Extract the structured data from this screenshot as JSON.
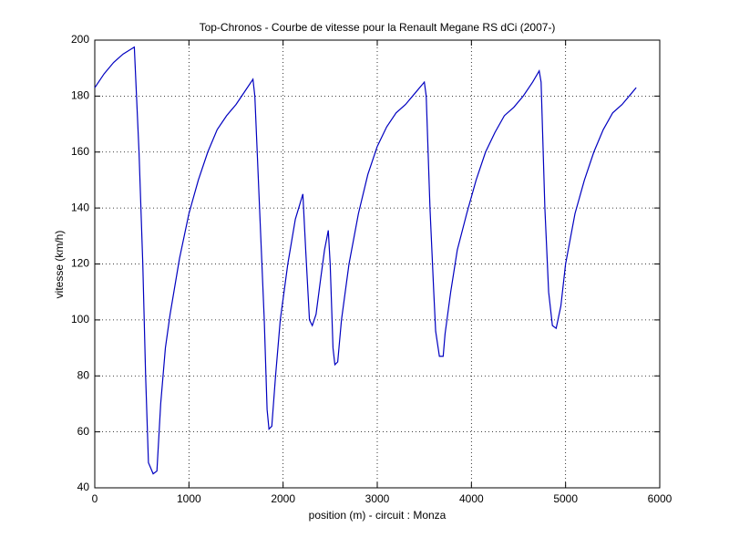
{
  "chart_data": {
    "type": "line",
    "title": "Top-Chronos - Courbe de vitesse pour la Renault Megane RS dCi (2007-)",
    "x_label": "position (m) - circuit : Monza",
    "y_label": "vitesse (km/h)",
    "x": [
      0,
      100,
      200,
      300,
      420,
      470,
      510,
      540,
      570,
      620,
      660,
      700,
      750,
      800,
      900,
      1000,
      1100,
      1200,
      1300,
      1400,
      1500,
      1600,
      1680,
      1700,
      1750,
      1800,
      1830,
      1850,
      1880,
      1920,
      1970,
      2050,
      2130,
      2210,
      2240,
      2280,
      2310,
      2350,
      2400,
      2440,
      2480,
      2500,
      2530,
      2550,
      2580,
      2620,
      2700,
      2800,
      2900,
      3000,
      3100,
      3200,
      3300,
      3400,
      3500,
      3520,
      3560,
      3600,
      3620,
      3660,
      3700,
      3720,
      3780,
      3850,
      3950,
      4050,
      4150,
      4250,
      4350,
      4450,
      4550,
      4650,
      4720,
      4740,
      4780,
      4820,
      4860,
      4900,
      4950,
      5000,
      5100,
      5200,
      5300,
      5400,
      5500,
      5600,
      5700,
      5750
    ],
    "series": [
      {
        "name": "vitesse",
        "color": "#0000c0",
        "values": [
          183,
          188,
          192,
          195,
          197.5,
          160,
          120,
          80,
          49,
          45,
          46,
          70,
          90,
          102,
          122,
          138,
          150,
          160,
          168,
          173,
          177,
          182,
          186,
          180,
          140,
          100,
          68,
          61,
          62,
          80,
          100,
          120,
          136,
          145,
          125,
          100,
          98,
          102,
          115,
          125,
          132,
          120,
          90,
          84,
          85,
          100,
          120,
          138,
          152,
          162,
          169,
          174,
          177,
          181,
          185,
          180,
          140,
          110,
          96,
          87,
          87,
          95,
          110,
          125,
          138,
          150,
          160,
          167,
          173,
          176,
          180,
          185,
          189,
          185,
          140,
          110,
          98,
          97,
          105,
          120,
          138,
          150,
          160,
          168,
          174,
          177,
          181,
          183
        ]
      }
    ],
    "xlim": [
      0,
      6000
    ],
    "xticks": [
      0,
      1000,
      2000,
      3000,
      4000,
      5000,
      6000
    ],
    "ylim": [
      40,
      200
    ],
    "yticks": [
      40,
      60,
      80,
      100,
      120,
      140,
      160,
      180,
      200
    ],
    "grid": true
  }
}
